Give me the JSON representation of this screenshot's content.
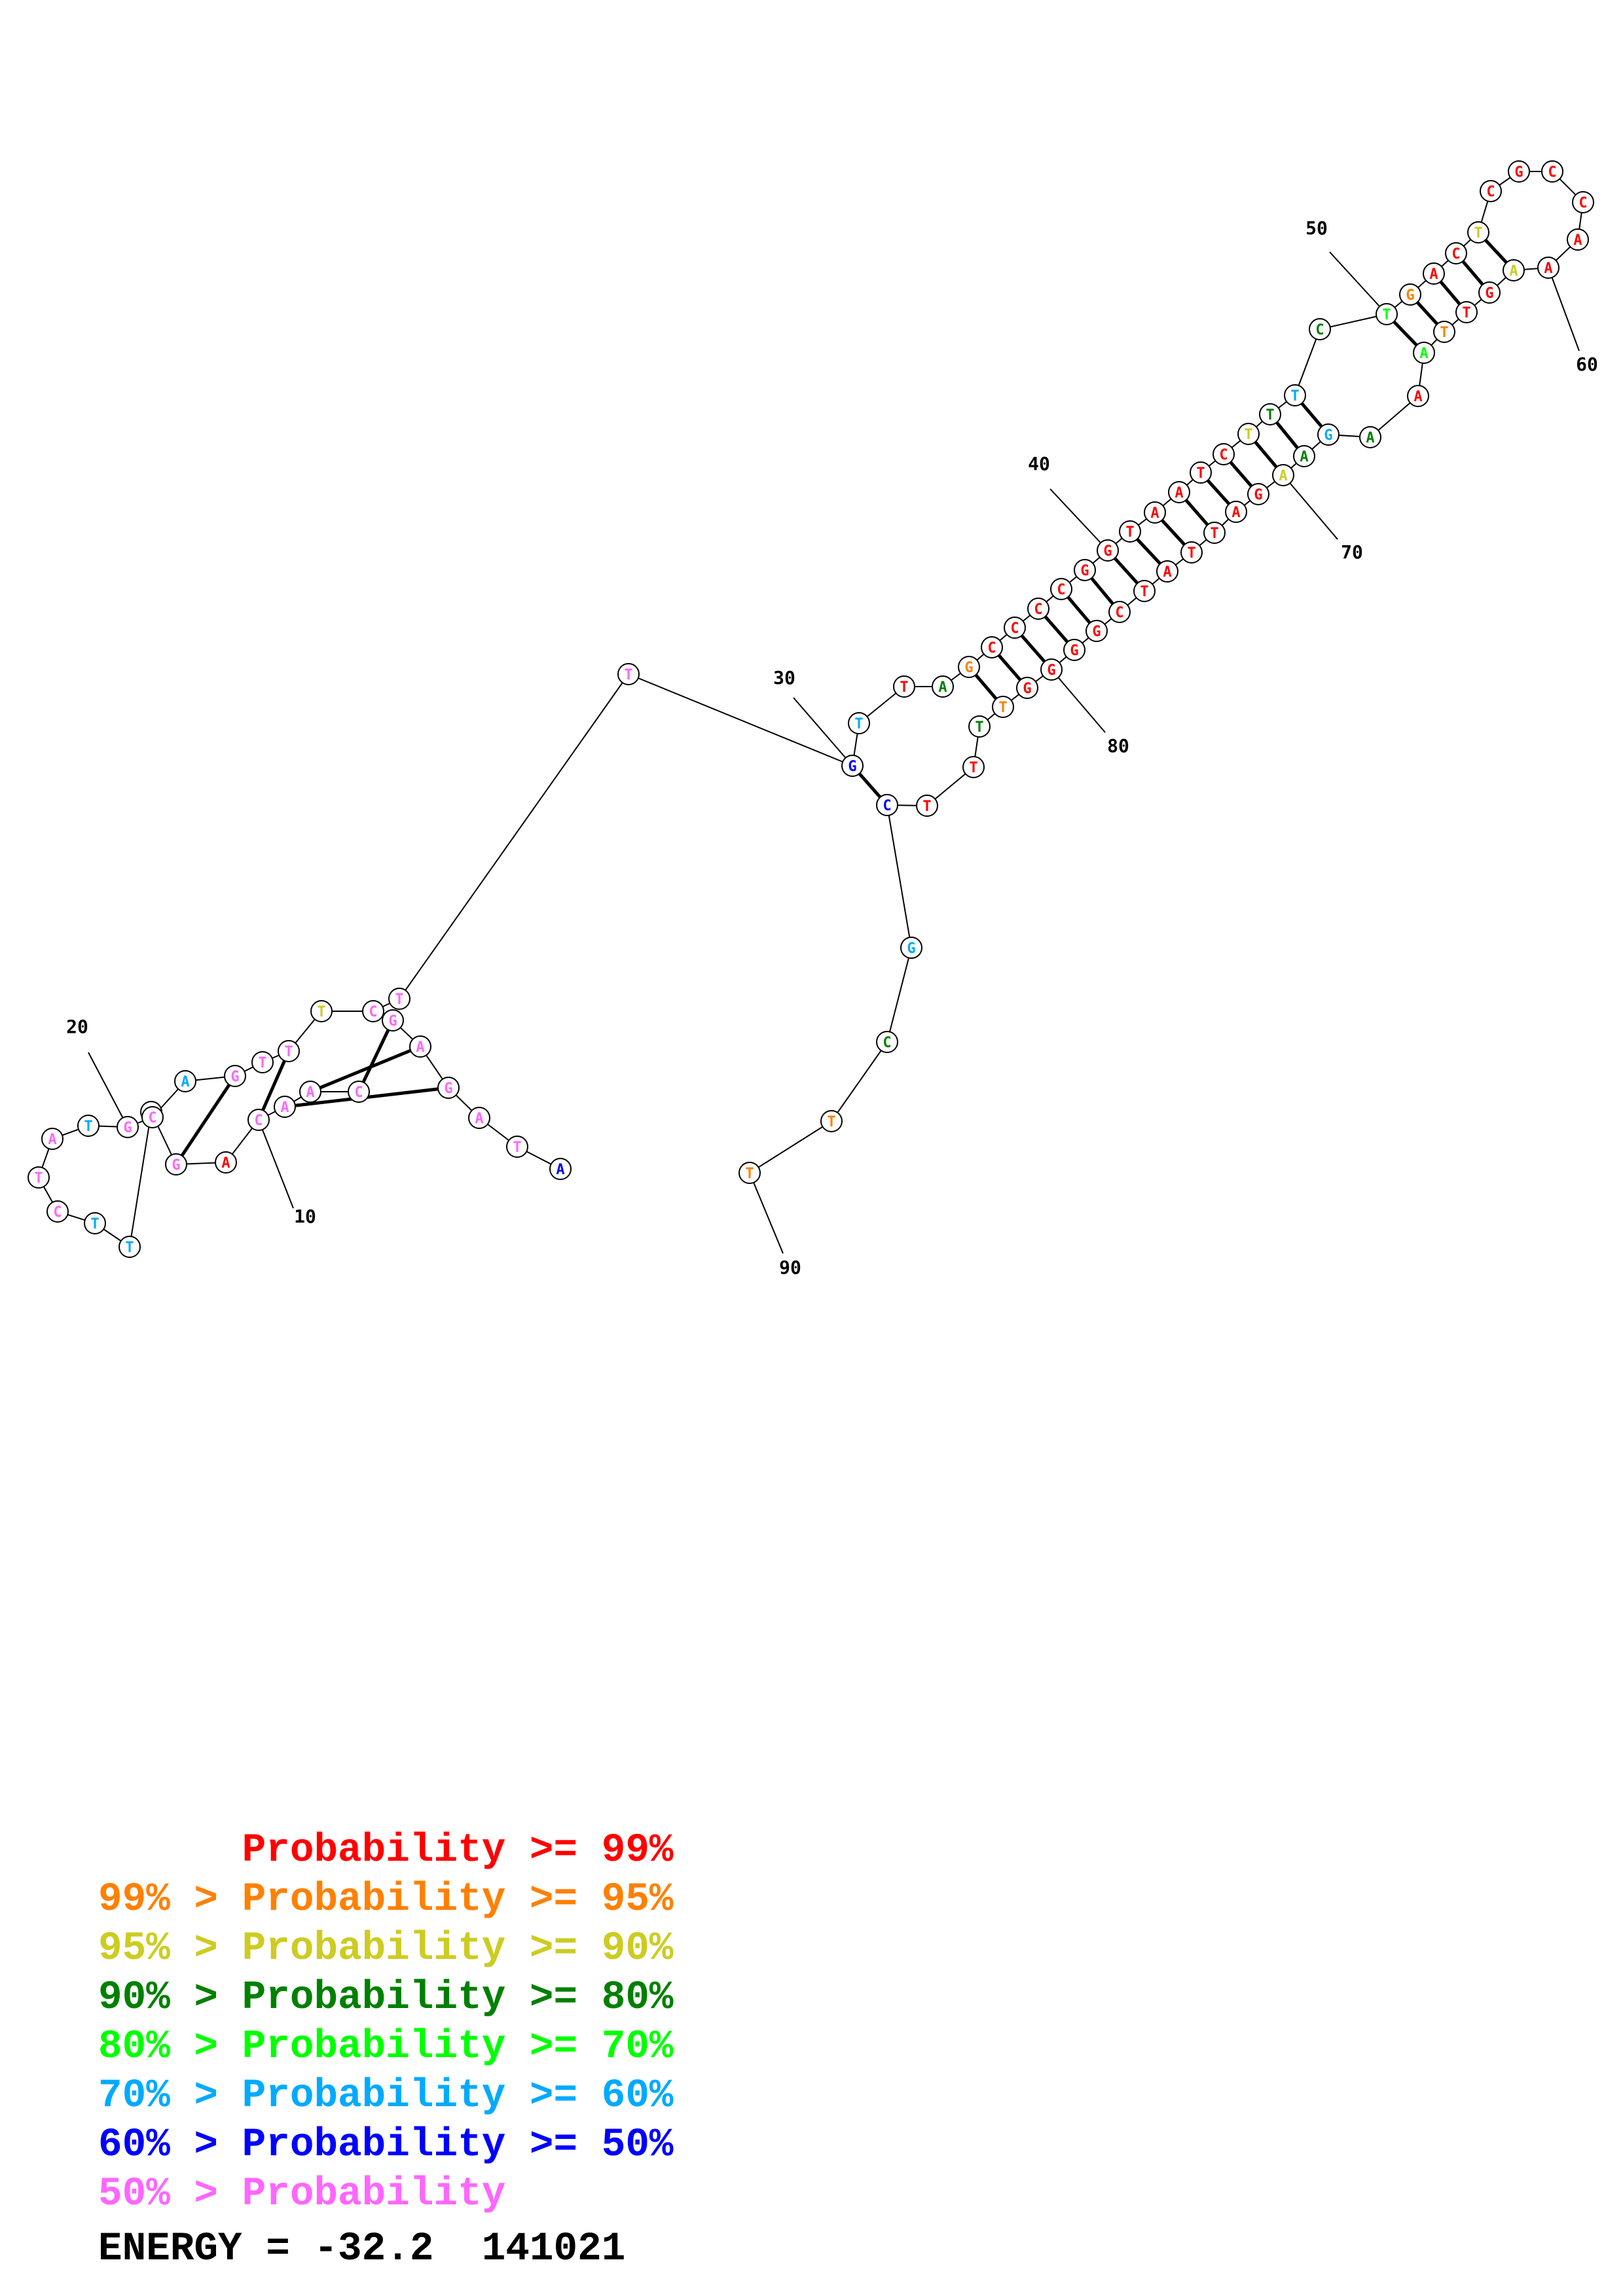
{
  "legend": [
    {
      "text": "      Probability >= 99%",
      "color": "#ff0000"
    },
    {
      "text": "99% > Probability >= 95%",
      "color": "#ff8000"
    },
    {
      "text": "95% > Probability >= 90%",
      "color": "#cccc22"
    },
    {
      "text": "90% > Probability >= 80%",
      "color": "#008000"
    },
    {
      "text": "80% > Probability >= 70%",
      "color": "#00ff00"
    },
    {
      "text": "70% > Probability >= 60%",
      "color": "#00aaff"
    },
    {
      "text": "60% > Probability >= 50%",
      "color": "#0000ff"
    },
    {
      "text": "50% > Probability",
      "color": "#ff66ff"
    }
  ],
  "energy": "ENERGY = -32.2  141021",
  "structure": {
    "tick_labels": [
      "10",
      "20",
      "30",
      "40",
      "50",
      "60",
      "70",
      "80",
      "90"
    ],
    "bases": [
      {
        "n": 1,
        "b": "A",
        "c": "#0000ff"
      },
      {
        "n": 2,
        "b": "T",
        "c": "#ff66ff"
      },
      {
        "n": 3,
        "b": "A",
        "c": "#ff66ff"
      },
      {
        "n": 4,
        "b": "G",
        "c": "#ff66ff"
      },
      {
        "n": 5,
        "b": "A",
        "c": "#ff66ff"
      },
      {
        "n": 6,
        "b": "G",
        "c": "#ff66ff"
      },
      {
        "n": 7,
        "b": "C",
        "c": "#ff66ff"
      },
      {
        "n": 8,
        "b": "A",
        "c": "#ff66ff"
      },
      {
        "n": 9,
        "b": "A",
        "c": "#ff66ff"
      },
      {
        "n": 10,
        "b": "C",
        "c": "#ff66ff"
      },
      {
        "n": 11,
        "b": "A",
        "c": "#ff0000"
      },
      {
        "n": 12,
        "b": "G",
        "c": "#ff66ff"
      },
      {
        "n": 13,
        "b": "C",
        "c": "#ff66ff"
      },
      {
        "n": 14,
        "b": "T",
        "c": "#00aaff"
      },
      {
        "n": 15,
        "b": "T",
        "c": "#00aaff"
      },
      {
        "n": 16,
        "b": "C",
        "c": "#ff66ff"
      },
      {
        "n": 17,
        "b": "T",
        "c": "#ff66ff"
      },
      {
        "n": 18,
        "b": "A",
        "c": "#ff66ff"
      },
      {
        "n": 19,
        "b": "T",
        "c": "#00aaff"
      },
      {
        "n": 20,
        "b": "G",
        "c": "#ff66ff"
      },
      {
        "n": 21,
        "b": "C",
        "c": "#ff66ff"
      },
      {
        "n": 22,
        "b": "A",
        "c": "#00aaff"
      },
      {
        "n": 23,
        "b": "G",
        "c": "#ff66ff"
      },
      {
        "n": 24,
        "b": "T",
        "c": "#ff66ff"
      },
      {
        "n": 25,
        "b": "T",
        "c": "#ff66ff"
      },
      {
        "n": 26,
        "b": "T",
        "c": "#cccc22"
      },
      {
        "n": 27,
        "b": "C",
        "c": "#ff66ff"
      },
      {
        "n": 28,
        "b": "T",
        "c": "#ff66ff"
      },
      {
        "n": 29,
        "b": "T",
        "c": "#ff66ff"
      },
      {
        "n": 30,
        "b": "G",
        "c": "#0000ff"
      },
      {
        "n": 31,
        "b": "T",
        "c": "#00aaff"
      },
      {
        "n": 32,
        "b": "T",
        "c": "#ff0000"
      },
      {
        "n": 33,
        "b": "A",
        "c": "#008000"
      },
      {
        "n": 34,
        "b": "G",
        "c": "#ff8000"
      },
      {
        "n": 35,
        "b": "C",
        "c": "#ff0000"
      },
      {
        "n": 36,
        "b": "C",
        "c": "#ff0000"
      },
      {
        "n": 37,
        "b": "C",
        "c": "#ff0000"
      },
      {
        "n": 38,
        "b": "C",
        "c": "#ff0000"
      },
      {
        "n": 39,
        "b": "G",
        "c": "#ff0000"
      },
      {
        "n": 40,
        "b": "G",
        "c": "#ff0000"
      },
      {
        "n": 41,
        "b": "T",
        "c": "#ff0000"
      },
      {
        "n": 42,
        "b": "A",
        "c": "#ff0000"
      },
      {
        "n": 43,
        "b": "A",
        "c": "#ff0000"
      },
      {
        "n": 44,
        "b": "T",
        "c": "#ff0000"
      },
      {
        "n": 45,
        "b": "C",
        "c": "#ff0000"
      },
      {
        "n": 46,
        "b": "T",
        "c": "#cccc22"
      },
      {
        "n": 47,
        "b": "T",
        "c": "#008000"
      },
      {
        "n": 48,
        "b": "T",
        "c": "#00aaff"
      },
      {
        "n": 49,
        "b": "C",
        "c": "#008000"
      },
      {
        "n": 50,
        "b": "T",
        "c": "#00ff00"
      },
      {
        "n": 51,
        "b": "G",
        "c": "#ff8000"
      },
      {
        "n": 52,
        "b": "A",
        "c": "#ff0000"
      },
      {
        "n": 53,
        "b": "C",
        "c": "#ff0000"
      },
      {
        "n": 54,
        "b": "T",
        "c": "#cccc22"
      },
      {
        "n": 55,
        "b": "C",
        "c": "#ff0000"
      },
      {
        "n": 56,
        "b": "G",
        "c": "#ff0000"
      },
      {
        "n": 57,
        "b": "C",
        "c": "#ff0000"
      },
      {
        "n": 58,
        "b": "C",
        "c": "#ff0000"
      },
      {
        "n": 59,
        "b": "A",
        "c": "#ff0000"
      },
      {
        "n": 60,
        "b": "A",
        "c": "#ff0000"
      },
      {
        "n": 61,
        "b": "A",
        "c": "#cccc22"
      },
      {
        "n": 62,
        "b": "G",
        "c": "#ff0000"
      },
      {
        "n": 63,
        "b": "T",
        "c": "#ff0000"
      },
      {
        "n": 64,
        "b": "T",
        "c": "#ff8000"
      },
      {
        "n": 65,
        "b": "A",
        "c": "#00ff00"
      },
      {
        "n": 66,
        "b": "A",
        "c": "#ff0000"
      },
      {
        "n": 67,
        "b": "A",
        "c": "#008000"
      },
      {
        "n": 68,
        "b": "G",
        "c": "#00aaff"
      },
      {
        "n": 69,
        "b": "A",
        "c": "#008000"
      },
      {
        "n": 70,
        "b": "A",
        "c": "#cccc22"
      },
      {
        "n": 71,
        "b": "G",
        "c": "#ff0000"
      },
      {
        "n": 72,
        "b": "A",
        "c": "#ff0000"
      },
      {
        "n": 73,
        "b": "T",
        "c": "#ff0000"
      },
      {
        "n": 74,
        "b": "T",
        "c": "#ff0000"
      },
      {
        "n": 75,
        "b": "A",
        "c": "#ff0000"
      },
      {
        "n": 76,
        "b": "T",
        "c": "#ff0000"
      },
      {
        "n": 77,
        "b": "C",
        "c": "#ff0000"
      },
      {
        "n": 78,
        "b": "G",
        "c": "#ff0000"
      },
      {
        "n": 79,
        "b": "G",
        "c": "#ff0000"
      },
      {
        "n": 80,
        "b": "G",
        "c": "#ff0000"
      },
      {
        "n": 81,
        "b": "G",
        "c": "#ff0000"
      },
      {
        "n": 82,
        "b": "T",
        "c": "#ff8000"
      },
      {
        "n": 83,
        "b": "T",
        "c": "#008000"
      },
      {
        "n": 84,
        "b": "T",
        "c": "#ff0000"
      },
      {
        "n": 85,
        "b": "T",
        "c": "#ff0000"
      },
      {
        "n": 86,
        "b": "C",
        "c": "#0000ff"
      },
      {
        "n": 87,
        "b": "G",
        "c": "#00aaff"
      },
      {
        "n": 88,
        "b": "C",
        "c": "#008000"
      },
      {
        "n": 89,
        "b": "T",
        "c": "#ff8000"
      },
      {
        "n": 90,
        "b": "T",
        "c": "#ff8000"
      }
    ],
    "pairs": [
      [
        4,
        9
      ],
      [
        5,
        8
      ],
      [
        6,
        7
      ],
      [
        10,
        25
      ],
      [
        12,
        23
      ],
      [
        13,
        21
      ],
      [
        30,
        86
      ],
      [
        34,
        82
      ],
      [
        35,
        81
      ],
      [
        36,
        80
      ],
      [
        37,
        79
      ],
      [
        38,
        78
      ],
      [
        39,
        77
      ],
      [
        40,
        76
      ],
      [
        41,
        75
      ],
      [
        42,
        74
      ],
      [
        43,
        73
      ],
      [
        44,
        72
      ],
      [
        45,
        71
      ],
      [
        46,
        70
      ],
      [
        47,
        69
      ],
      [
        48,
        68
      ],
      [
        50,
        65
      ],
      [
        51,
        64
      ],
      [
        52,
        63
      ],
      [
        53,
        62
      ],
      [
        54,
        61
      ]
    ]
  }
}
